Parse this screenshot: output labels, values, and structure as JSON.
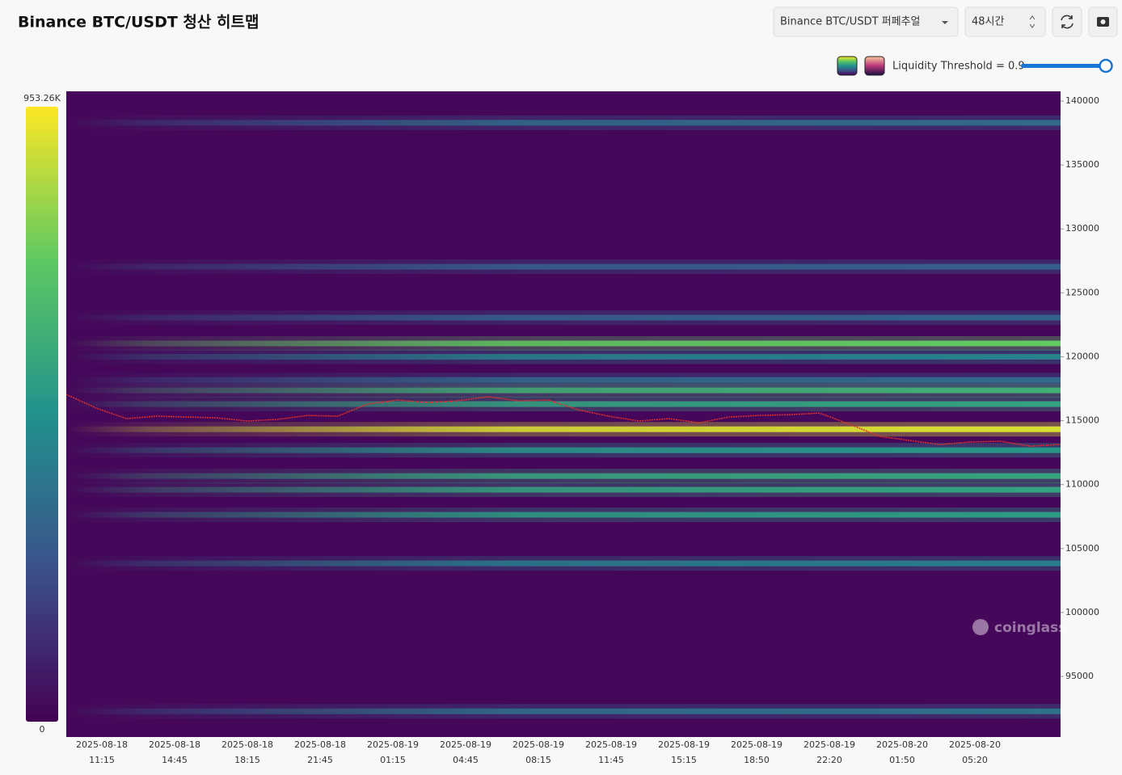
{
  "header": {
    "title": "Binance BTC/USDT 청산 히트맵",
    "exchange_select": "Binance BTC/USDT 퍼페추얼",
    "period_select": "48시간",
    "threshold_text": "Liquidity Threshold = 0.9"
  },
  "chart_data": {
    "type": "heatmap",
    "watermark": "coinglass",
    "x_dates": [
      "2025-08-18",
      "2025-08-18",
      "2025-08-18",
      "2025-08-18",
      "2025-08-19",
      "2025-08-19",
      "2025-08-19",
      "2025-08-19",
      "2025-08-19",
      "2025-08-19",
      "2025-08-19",
      "2025-08-20",
      "2025-08-20"
    ],
    "x_times": [
      "11:15",
      "14:45",
      "18:15",
      "21:45",
      "01:15",
      "04:45",
      "08:15",
      "11:45",
      "15:15",
      "18:50",
      "22:20",
      "01:50",
      "05:20"
    ],
    "ylim": [
      90260,
      140760
    ],
    "yticks": [
      140000,
      135000,
      130000,
      125000,
      120000,
      115000,
      110000,
      105000,
      100000,
      95000
    ],
    "colormap": [
      "#440154",
      "#3b528b",
      "#21918c",
      "#5ec962",
      "#fde725"
    ],
    "colorbar_ticks": [
      0,
      {
        "value": 953260,
        "label": "953.26K"
      }
    ],
    "levels": [
      138300,
      127040,
      123060,
      121040,
      120000,
      118180,
      117370,
      116300,
      114330,
      112690,
      110670,
      109600,
      107640,
      103840,
      92270
    ],
    "intensities": [
      330000,
      290000,
      300000,
      720000,
      420000,
      330000,
      600000,
      550000,
      900000,
      500000,
      560000,
      550000,
      520000,
      400000,
      350000
    ],
    "price_line": {
      "color": "#e0302a",
      "values": [
        117050,
        115980,
        115160,
        115350,
        115290,
        115220,
        114970,
        115100,
        115410,
        115350,
        116300,
        116610,
        116420,
        116550,
        116870,
        116550,
        116610,
        115850,
        115350,
        114970,
        115160,
        114840,
        115290,
        115410,
        115470,
        115600,
        114720,
        113770,
        113450,
        113140,
        113330,
        113390,
        113010,
        113140
      ]
    }
  }
}
